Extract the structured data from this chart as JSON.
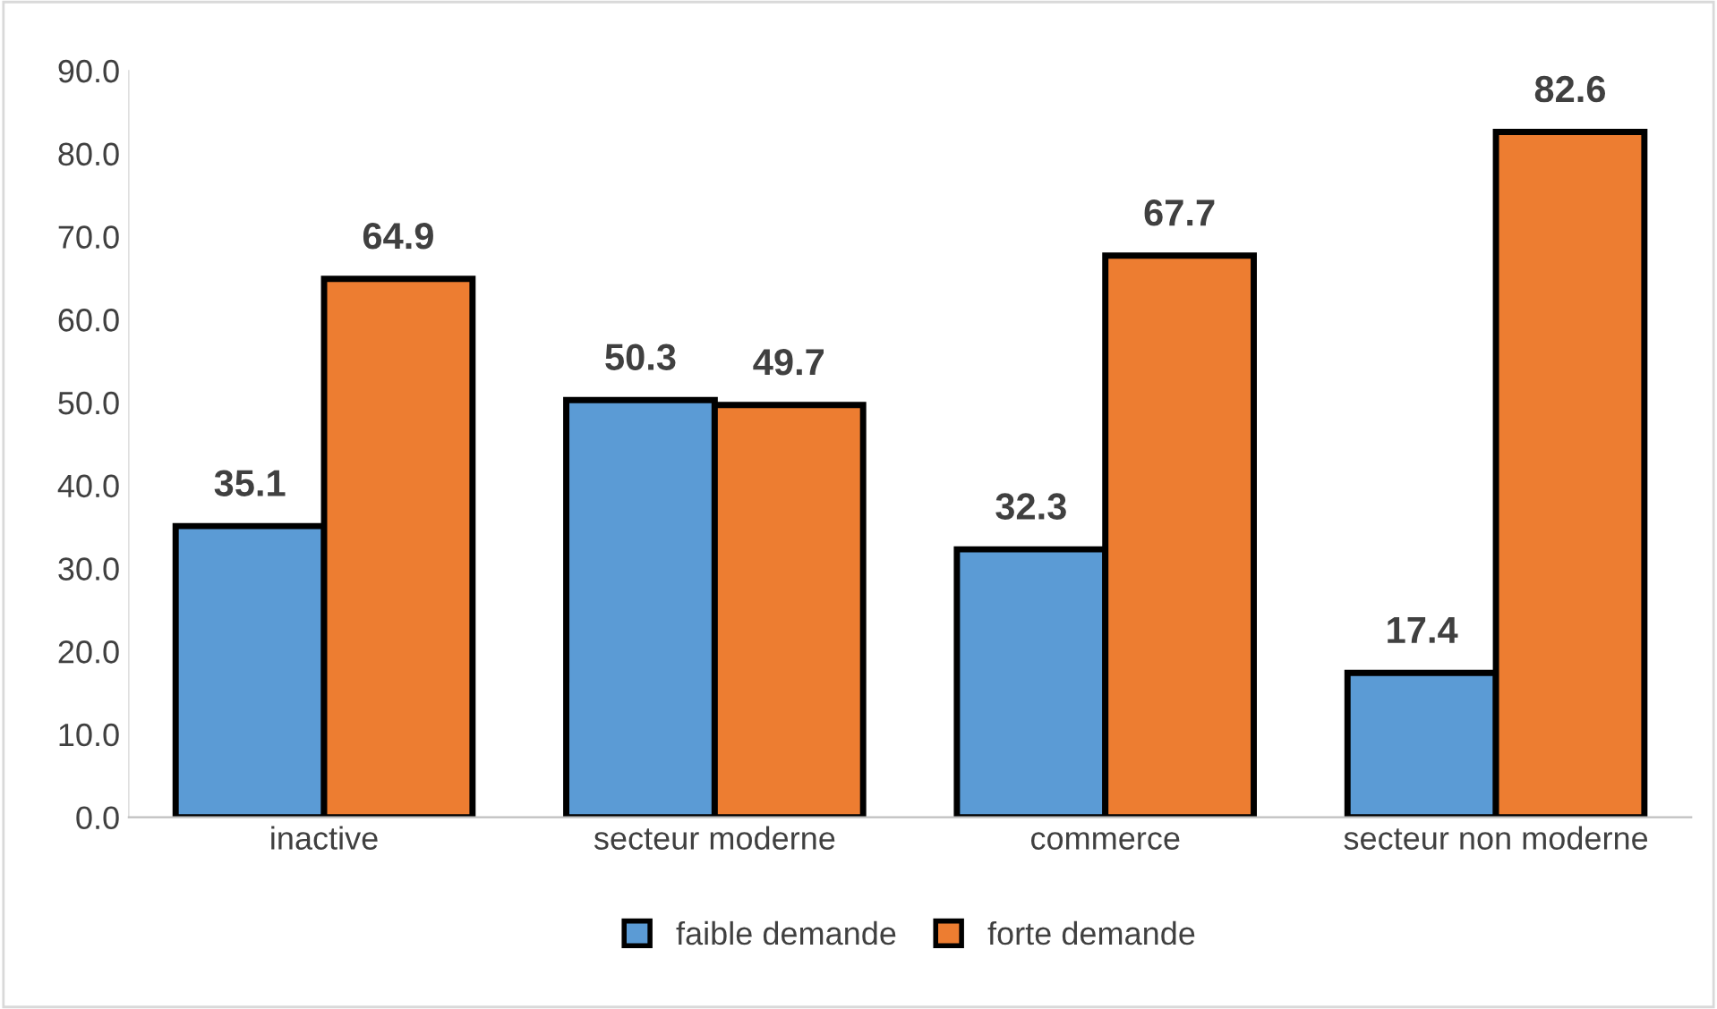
{
  "chart_data": {
    "type": "bar",
    "categories": [
      "inactive",
      "secteur moderne",
      "commerce",
      "secteur non moderne"
    ],
    "series": [
      {
        "name": "faible demande",
        "color": "#5b9bd5",
        "values": [
          35.1,
          50.3,
          32.3,
          17.4
        ]
      },
      {
        "name": "forte demande",
        "color": "#ed7d31",
        "values": [
          64.9,
          49.7,
          67.7,
          82.6
        ]
      }
    ],
    "ylim": [
      0,
      90
    ],
    "yticks": [
      {
        "value": 0,
        "label": "0.0"
      },
      {
        "value": 10,
        "label": "10.0"
      },
      {
        "value": 20,
        "label": "20.0"
      },
      {
        "value": 30,
        "label": "30.0"
      },
      {
        "value": 40,
        "label": "40.0"
      },
      {
        "value": 50,
        "label": "50.0"
      },
      {
        "value": 60,
        "label": "60.0"
      },
      {
        "value": 70,
        "label": "70.0"
      },
      {
        "value": 80,
        "label": "80.0"
      },
      {
        "value": 90,
        "label": "90.0"
      }
    ],
    "grid": false,
    "legend": "bottom",
    "data_labels": true
  }
}
